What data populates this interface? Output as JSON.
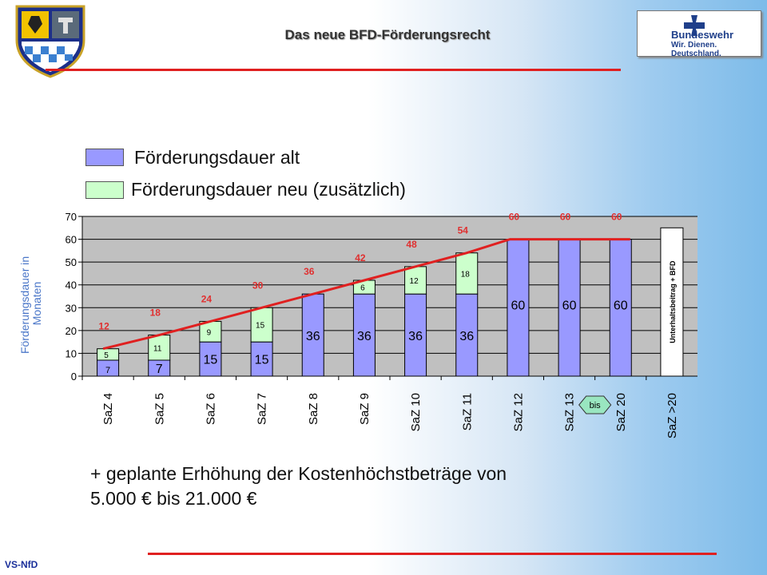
{
  "header": {
    "title": "Das neue BFD-Förderungsrecht",
    "brand_line1": "Bundeswehr",
    "brand_line2": "Wir. Dienen. Deutschland."
  },
  "legend": {
    "old": "Förderungsdauer alt",
    "new": "Förderungsdauer neu (zusätzlich)"
  },
  "bottom_text": {
    "line1": "+ geplante Erhöhung der Kostenhöchstbeträge von",
    "line2": "5.000 € bis 21.000 €"
  },
  "footer": "VS-NfD",
  "colors": {
    "old_fill": "#9999ff",
    "new_fill": "#ccffcc",
    "trend_line": "#e02020",
    "total_label": "#e03030",
    "axis_title": "#4a76c8",
    "plot_bg": "#c0c0c0",
    "accent_red": "#e02020"
  },
  "chart_data": {
    "type": "bar",
    "stacked": true,
    "categories": [
      "SaZ 4",
      "SaZ 5",
      "SaZ 6",
      "SaZ 7",
      "SaZ 8",
      "SaZ 9",
      "SaZ 10",
      "SaZ 11",
      "SaZ 12",
      "SaZ 13",
      "SaZ 20",
      "SaZ >20"
    ],
    "series": [
      {
        "name": "Förderungsdauer alt",
        "values": [
          7,
          7,
          15,
          15,
          36,
          36,
          36,
          36,
          60,
          60,
          60,
          null
        ]
      },
      {
        "name": "Förderungsdauer neu (zusätzlich)",
        "values": [
          5,
          11,
          9,
          15,
          0,
          6,
          12,
          18,
          0,
          0,
          0,
          null
        ]
      }
    ],
    "old_labels": [
      "7",
      "7",
      "15",
      "15",
      "36",
      "36",
      "36",
      "36",
      "60",
      "60",
      "60",
      ""
    ],
    "new_labels": [
      "5",
      "11",
      "9",
      "15",
      "",
      "6",
      "12",
      "18",
      "",
      "",
      "",
      ""
    ],
    "totals": [
      "12",
      "18",
      "24",
      "30",
      "36",
      "42",
      "48",
      "54",
      "60",
      "60",
      "60",
      ""
    ],
    "ylabel": "Förderungsdauer in Monaten",
    "ylim": [
      0,
      70
    ],
    "yticks": [
      "0",
      "10",
      "20",
      "30",
      "40",
      "50",
      "60",
      "70"
    ],
    "grid": true,
    "special_bar": {
      "category": "SaZ >20",
      "label": "Unterhaltsbeitrag + BFD",
      "value": 65
    },
    "bis_label": "bis"
  }
}
